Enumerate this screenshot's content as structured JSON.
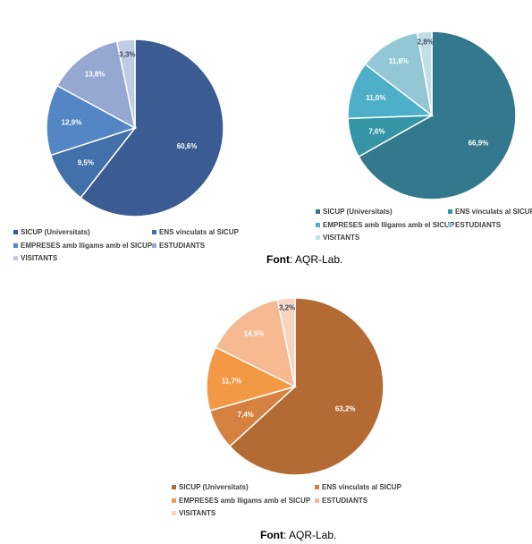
{
  "chart_data": [
    {
      "type": "pie",
      "categories": [
        "SICUP (Universitats)",
        "ENS vinculats al SICUP",
        "EMPRESES amb lligams amb el SICUP",
        "ESTUDIANTS",
        "VISITANTS"
      ],
      "values": [
        60.6,
        9.5,
        12.9,
        13.8,
        3.3
      ],
      "labels": [
        "60,6%",
        "9,5%",
        "12,9%",
        "13,8%",
        "3,3%"
      ],
      "colors": [
        "#3A5C93",
        "#4270AB",
        "#5486C6",
        "#94A8D1",
        "#C0CBE5"
      ],
      "legend_position": "bottom"
    },
    {
      "type": "pie",
      "categories": [
        "SICUP (Universitats)",
        "ENS vinculats al SICUP",
        "EMPRESES amb lligams amb el SICUP",
        "ESTUDIANTS",
        "VISITANTS"
      ],
      "values": [
        66.9,
        7.6,
        11.0,
        11.8,
        2.8
      ],
      "labels": [
        "66,9%",
        "7,6%",
        "11,0%",
        "11,8%",
        "2,8%"
      ],
      "colors": [
        "#33788D",
        "#3595A7",
        "#4DB0C8",
        "#93C7D6",
        "#C2DFE8"
      ],
      "legend_position": "bottom"
    },
    {
      "type": "pie",
      "categories": [
        "SICUP (Universitats)",
        "ENS vinculats al SICUP",
        "EMPRESES amb lligams amb el SICUP",
        "ESTUDIANTS",
        "VISITANTS"
      ],
      "values": [
        63.2,
        7.4,
        11.7,
        14.5,
        3.2
      ],
      "labels": [
        "63,2%",
        "7,4%",
        "11,7%",
        "14,5%",
        "3,2%"
      ],
      "colors": [
        "#B46A33",
        "#D5813F",
        "#F39845",
        "#F6B992",
        "#F8D4C0"
      ],
      "legend_position": "bottom"
    }
  ],
  "sources": [
    {
      "label": "Font",
      "text": ": AQR-Lab."
    },
    {
      "label": "Font",
      "text": ": AQR-Lab."
    }
  ]
}
